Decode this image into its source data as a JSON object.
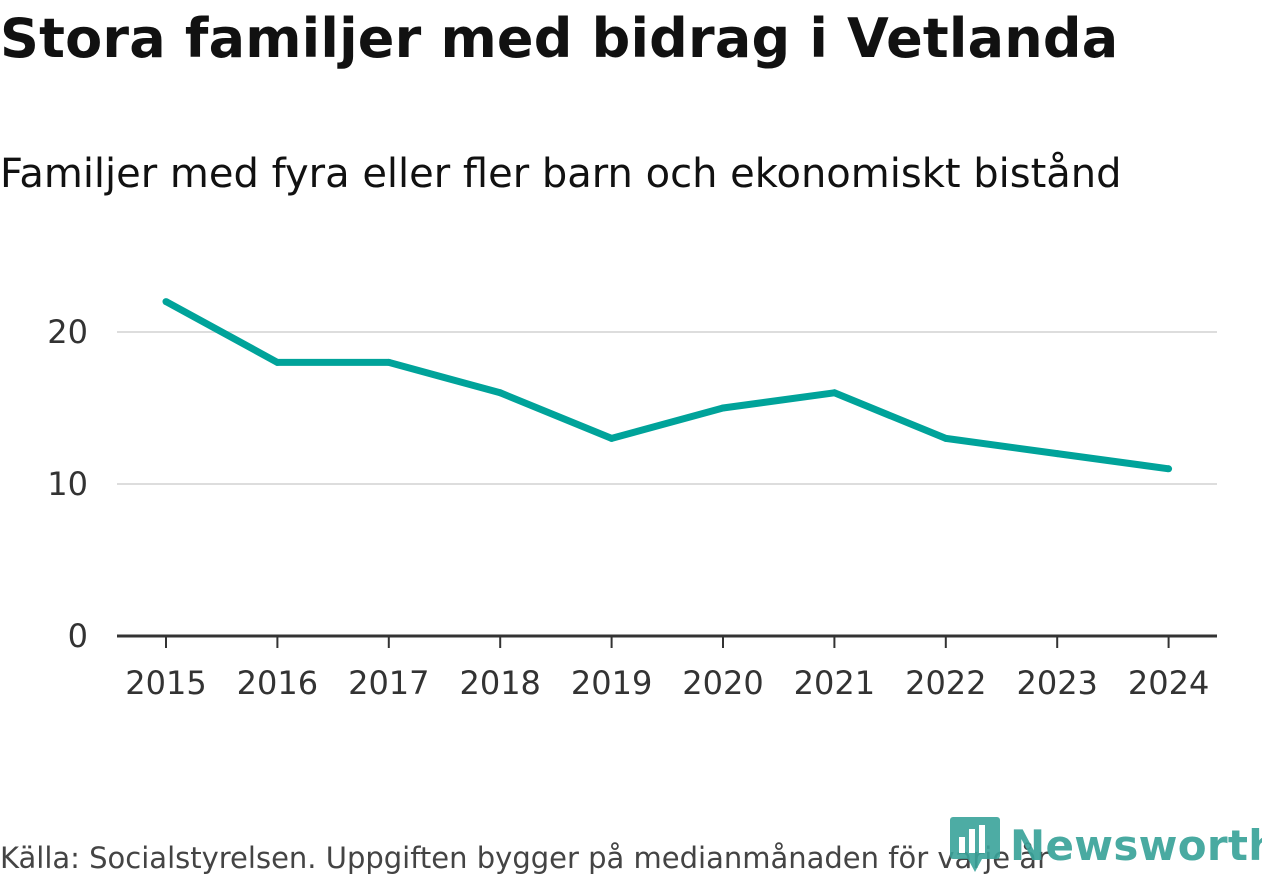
{
  "title": "Stora familjer med bidrag i Vetlanda",
  "subtitle": "Familjer med fyra eller fler barn och ekonomiskt bistånd",
  "source": "Källa: Socialstyrelsen. Uppgiften bygger på medianmånaden för varje år",
  "logo": {
    "text": "Newsworthy",
    "icon": "newsworthy-logo-icon"
  },
  "colors": {
    "line": "#00A39A",
    "grid": "#dddddd",
    "axis": "#333333",
    "logo": "#3aa39a"
  },
  "chart_data": {
    "type": "line",
    "title": "Stora familjer med bidrag i Vetlanda",
    "subtitle": "Familjer med fyra eller fler barn och ekonomiskt bistånd",
    "xlabel": "",
    "ylabel": "",
    "categories": [
      "2015",
      "2016",
      "2017",
      "2018",
      "2019",
      "2020",
      "2021",
      "2022",
      "2023",
      "2024"
    ],
    "series": [
      {
        "name": "Familjer med fyra eller fler barn och ekonomiskt bistånd",
        "values": [
          22,
          18,
          18,
          16,
          13,
          15,
          16,
          13,
          12,
          11
        ]
      }
    ],
    "ylim": [
      0,
      24
    ],
    "yticks": [
      0,
      10,
      20
    ],
    "ytick_labels": [
      "0",
      "10",
      "20"
    ],
    "grid": true,
    "legend": "none"
  }
}
